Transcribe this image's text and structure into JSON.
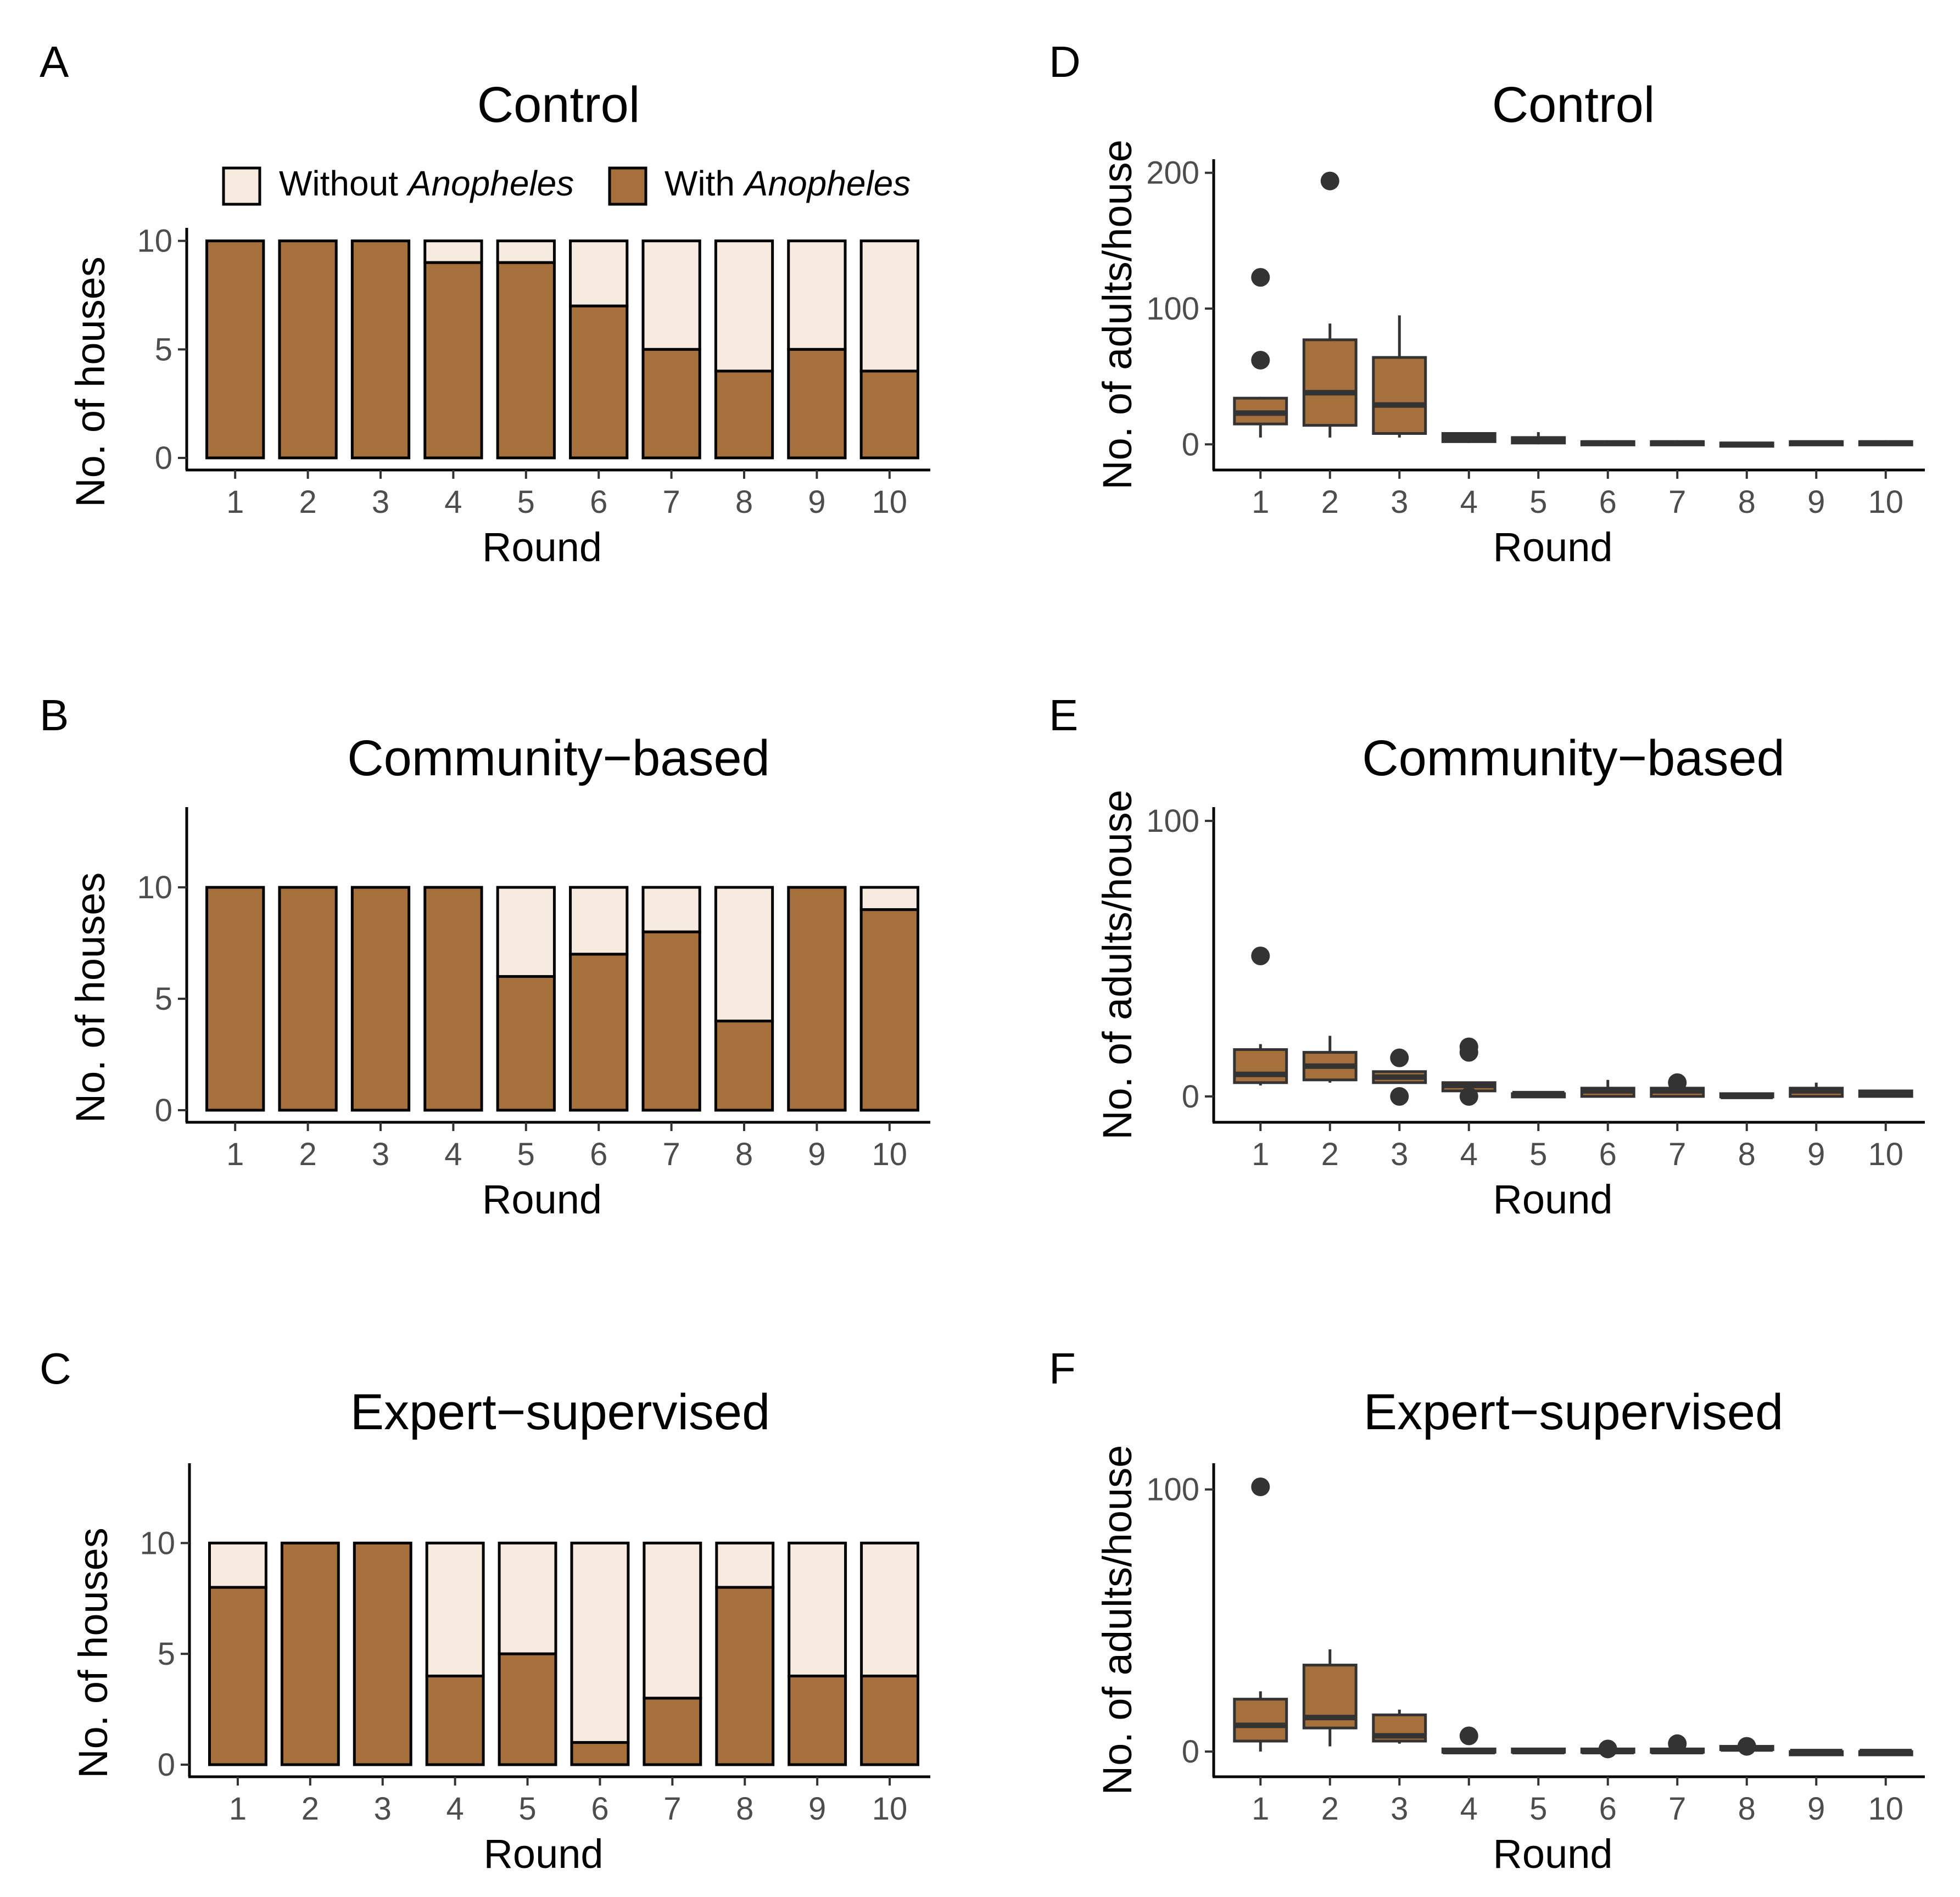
{
  "colors": {
    "with": "#a5703b",
    "without": "#f7ebdf",
    "box_fill": "#a5703b",
    "box_line": "#333333"
  },
  "legend": {
    "without_prefix": "Without ",
    "without_italic": "Anopheles",
    "with_prefix": "With ",
    "with_italic": "Anopheles"
  },
  "chart_data": [
    {
      "panel": "A",
      "type": "bar",
      "stacked": true,
      "title": "Control",
      "xlabel": "Round",
      "ylabel": "No. of houses",
      "categories": [
        "1",
        "2",
        "3",
        "4",
        "5",
        "6",
        "7",
        "8",
        "9",
        "10"
      ],
      "ylim": [
        0,
        10.6
      ],
      "yticks": [
        "0",
        "5",
        "10"
      ],
      "series": [
        {
          "name": "With Anopheles",
          "values": [
            10,
            10,
            10,
            9,
            9,
            7,
            5,
            4,
            5,
            4
          ]
        },
        {
          "name": "Without Anopheles",
          "values": [
            0,
            0,
            0,
            1,
            1,
            3,
            5,
            6,
            5,
            6
          ]
        }
      ],
      "legend": "top"
    },
    {
      "panel": "B",
      "type": "bar",
      "stacked": true,
      "title": "Community−based",
      "xlabel": "Round",
      "ylabel": "No. of houses",
      "categories": [
        "1",
        "2",
        "3",
        "4",
        "5",
        "6",
        "7",
        "8",
        "9",
        "10"
      ],
      "ylim": [
        0,
        13.6
      ],
      "yticks": [
        "0",
        "5",
        "10"
      ],
      "series": [
        {
          "name": "With Anopheles",
          "values": [
            10,
            10,
            10,
            10,
            6,
            7,
            8,
            4,
            10,
            9
          ]
        },
        {
          "name": "Without Anopheles",
          "values": [
            0,
            0,
            0,
            0,
            4,
            3,
            2,
            6,
            0,
            1
          ]
        }
      ]
    },
    {
      "panel": "C",
      "type": "bar",
      "stacked": true,
      "title": "Expert−supervised",
      "xlabel": "Round",
      "ylabel": "No. of houses",
      "categories": [
        "1",
        "2",
        "3",
        "4",
        "5",
        "6",
        "7",
        "8",
        "9",
        "10"
      ],
      "ylim": [
        0,
        13.6
      ],
      "yticks": [
        "0",
        "5",
        "10"
      ],
      "series": [
        {
          "name": "With Anopheles",
          "values": [
            8,
            10,
            10,
            4,
            5,
            1,
            3,
            8,
            4,
            4
          ]
        },
        {
          "name": "Without Anopheles",
          "values": [
            2,
            0,
            0,
            6,
            5,
            9,
            7,
            2,
            6,
            6
          ]
        }
      ]
    },
    {
      "panel": "D",
      "type": "box",
      "title": "Control",
      "xlabel": "Round",
      "ylabel": "No. of adults/house",
      "categories": [
        "1",
        "2",
        "3",
        "4",
        "5",
        "6",
        "7",
        "8",
        "9",
        "10"
      ],
      "ylim": [
        -10,
        210
      ],
      "yticks": [
        "0",
        "100",
        "200"
      ],
      "boxes": [
        {
          "low": 5,
          "q1": 15,
          "median": 23,
          "q3": 34,
          "high": 35,
          "outliers": [
            62,
            123
          ]
        },
        {
          "low": 5,
          "q1": 14,
          "median": 38,
          "q3": 77,
          "high": 89,
          "outliers": [
            194
          ]
        },
        {
          "low": 5,
          "q1": 8,
          "median": 29,
          "q3": 64,
          "high": 95,
          "outliers": []
        },
        {
          "low": 1,
          "q1": 2,
          "median": 5,
          "q3": 8,
          "high": 9,
          "outliers": []
        },
        {
          "low": 0,
          "q1": 1,
          "median": 3,
          "q3": 5,
          "high": 9,
          "outliers": []
        },
        {
          "low": 0,
          "q1": 0,
          "median": 1,
          "q3": 2,
          "high": 3,
          "outliers": []
        },
        {
          "low": 0,
          "q1": 0,
          "median": 1,
          "q3": 2,
          "high": 3,
          "outliers": []
        },
        {
          "low": 0,
          "q1": 0,
          "median": 0,
          "q3": 1,
          "high": 1,
          "outliers": []
        },
        {
          "low": 0,
          "q1": 0,
          "median": 1,
          "q3": 2,
          "high": 2,
          "outliers": []
        },
        {
          "low": 0,
          "q1": 0,
          "median": 1,
          "q3": 2,
          "high": 3,
          "outliers": []
        }
      ]
    },
    {
      "panel": "E",
      "type": "box",
      "title": "Community−based",
      "xlabel": "Round",
      "ylabel": "No. of adults/house",
      "categories": [
        "1",
        "2",
        "3",
        "4",
        "5",
        "6",
        "7",
        "8",
        "9",
        "10"
      ],
      "ylim": [
        -5,
        105
      ],
      "yticks": [
        "0",
        "100"
      ],
      "boxes": [
        {
          "low": 4,
          "q1": 5,
          "median": 8,
          "q3": 17,
          "high": 19,
          "outliers": [
            51
          ]
        },
        {
          "low": 5,
          "q1": 6,
          "median": 11,
          "q3": 16,
          "high": 22,
          "outliers": []
        },
        {
          "low": 5,
          "q1": 5,
          "median": 7,
          "q3": 9,
          "high": 9,
          "outliers": [
            0,
            14
          ]
        },
        {
          "low": 2,
          "q1": 2,
          "median": 4,
          "q3": 5,
          "high": 5,
          "outliers": [
            0,
            16,
            18
          ]
        },
        {
          "low": 0,
          "q1": 0,
          "median": 1,
          "q3": 1,
          "high": 1,
          "outliers": []
        },
        {
          "low": 0,
          "q1": 0,
          "median": 2,
          "q3": 3,
          "high": 6,
          "outliers": []
        },
        {
          "low": 0,
          "q1": 0,
          "median": 2,
          "q3": 3,
          "high": 3,
          "outliers": [
            5
          ]
        },
        {
          "low": 0,
          "q1": 0,
          "median": 0,
          "q3": 1,
          "high": 1,
          "outliers": []
        },
        {
          "low": 0,
          "q1": 0,
          "median": 2,
          "q3": 3,
          "high": 5,
          "outliers": []
        },
        {
          "low": 0,
          "q1": 0,
          "median": 1,
          "q3": 2,
          "high": 2,
          "outliers": []
        }
      ]
    },
    {
      "panel": "F",
      "type": "box",
      "title": "Expert−supervised",
      "xlabel": "Round",
      "ylabel": "No. of adults/house",
      "categories": [
        "1",
        "2",
        "3",
        "4",
        "5",
        "6",
        "7",
        "8",
        "9",
        "10"
      ],
      "ylim": [
        -5,
        110
      ],
      "yticks": [
        "0",
        "100"
      ],
      "boxes": [
        {
          "low": 0,
          "q1": 4,
          "median": 10,
          "q3": 20,
          "high": 23,
          "outliers": [
            101
          ]
        },
        {
          "low": 2,
          "q1": 9,
          "median": 13,
          "q3": 33,
          "high": 39,
          "outliers": []
        },
        {
          "low": 3,
          "q1": 4,
          "median": 6,
          "q3": 14,
          "high": 16,
          "outliers": []
        },
        {
          "low": 0,
          "q1": 0,
          "median": 0,
          "q3": 1,
          "high": 1,
          "outliers": [
            6
          ]
        },
        {
          "low": 0,
          "q1": 0,
          "median": 0,
          "q3": 1,
          "high": 1,
          "outliers": []
        },
        {
          "low": 0,
          "q1": 0,
          "median": 0,
          "q3": 1,
          "high": 1,
          "outliers": [
            1
          ]
        },
        {
          "low": 0,
          "q1": 0,
          "median": 0,
          "q3": 1,
          "high": 1,
          "outliers": [
            3
          ]
        },
        {
          "low": 0,
          "q1": 1,
          "median": 1,
          "q3": 2,
          "high": 2,
          "outliers": [
            2
          ]
        },
        {
          "low": 0,
          "q1": 0,
          "median": 0,
          "q3": 0,
          "high": 0,
          "outliers": []
        },
        {
          "low": 0,
          "q1": 0,
          "median": 0,
          "q3": 0,
          "high": 0,
          "outliers": []
        }
      ]
    }
  ]
}
